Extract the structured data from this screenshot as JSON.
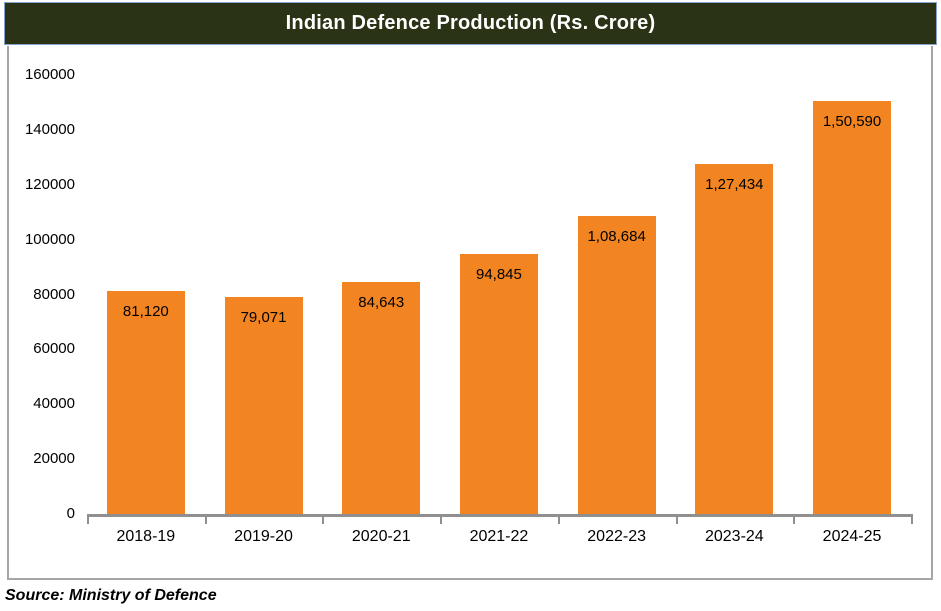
{
  "header": {
    "title": "Indian Defence Production (Rs. Crore)"
  },
  "footer": {
    "source": "Source: Ministry of Defence"
  },
  "colors": {
    "bar": "#F28522",
    "title_bg": "#2A3315",
    "title_text": "#FFFFFF",
    "title_border": "#82A5CE",
    "chart_border": "#A6A6A6",
    "axis": "#8F8F8F",
    "label_text": "#000000"
  },
  "chart_data": {
    "type": "bar",
    "title": "Indian Defence Production (Rs. Crore)",
    "categories": [
      "2018-19",
      "2019-20",
      "2020-21",
      "2021-22",
      "2022-23",
      "2023-24",
      "2024-25"
    ],
    "values": [
      81120,
      79071,
      84643,
      94845,
      108684,
      127434,
      150590
    ],
    "value_labels": [
      "81,120",
      "79,071",
      "84,643",
      "94,845",
      "1,08,684",
      "1,27,434",
      "1,50,590"
    ],
    "xlabel": "",
    "ylabel": "",
    "ylim": [
      0,
      160000
    ],
    "ytick_step": 20000,
    "ytick_labels": [
      "0",
      "20000",
      "40000",
      "60000",
      "80000",
      "100000",
      "120000",
      "140000",
      "160000"
    ],
    "grid": false,
    "legend": null,
    "data_label_position": "inside-top",
    "source": "Source: Ministry of Defence"
  }
}
